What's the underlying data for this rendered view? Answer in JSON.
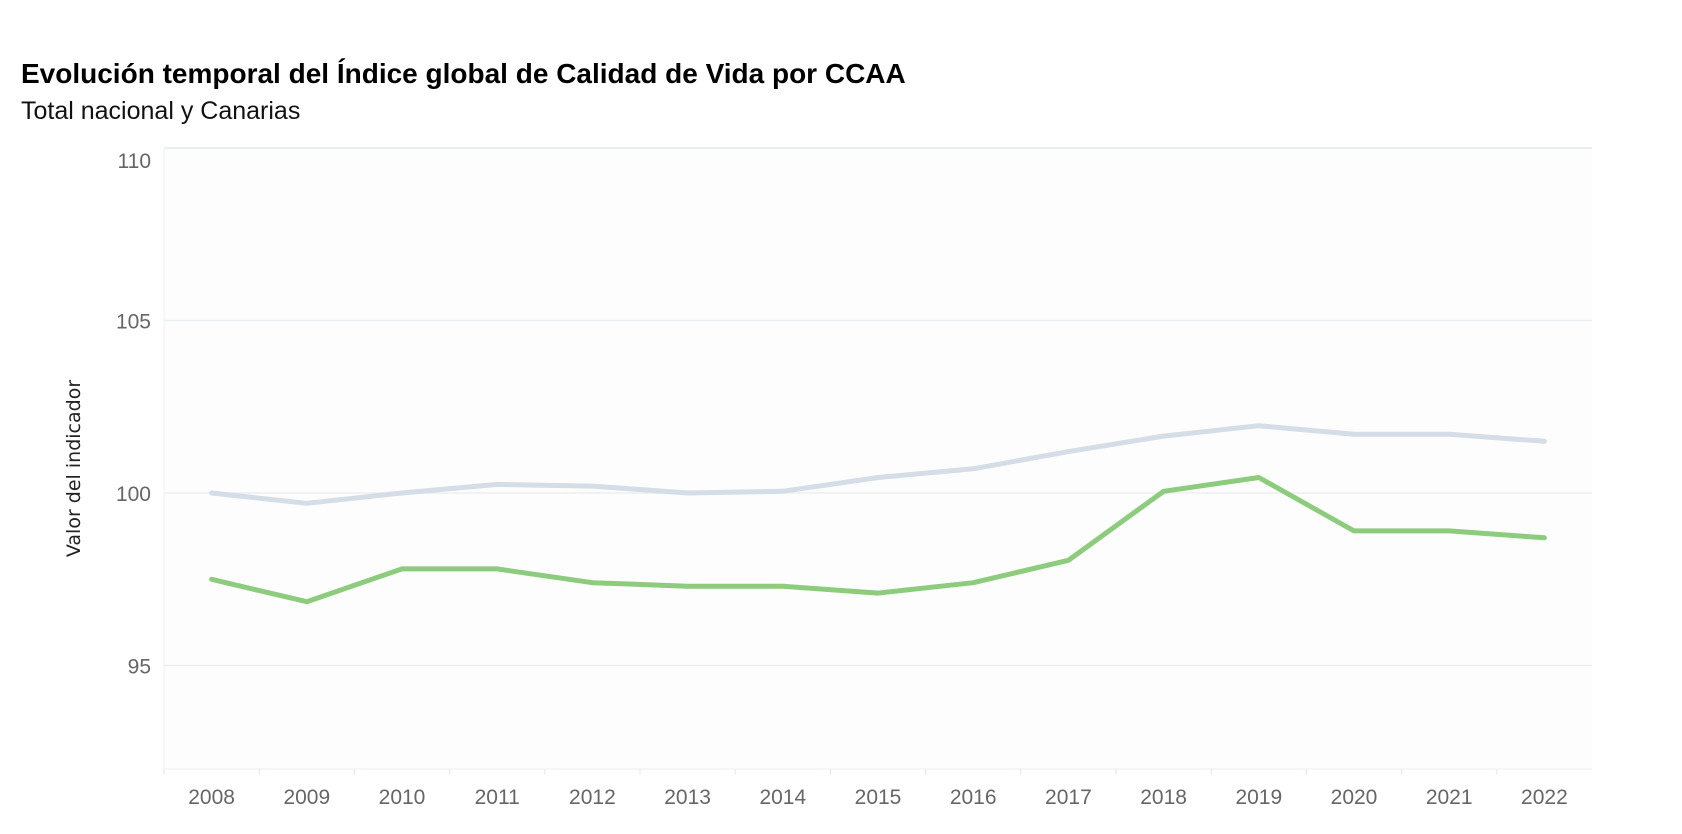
{
  "chart_data": {
    "type": "line",
    "title": "Evolución temporal del Índice global de Calidad de Vida por CCAA",
    "subtitle": "Total nacional y Canarias",
    "xlabel": "",
    "ylabel": "Valor del indicador",
    "x": [
      "2008",
      "2009",
      "2010",
      "2011",
      "2012",
      "2013",
      "2014",
      "2015",
      "2016",
      "2017",
      "2018",
      "2019",
      "2020",
      "2021",
      "2022"
    ],
    "ylim": [
      92,
      110
    ],
    "yticks": [
      95,
      100,
      105,
      110
    ],
    "grid": true,
    "legend": "none",
    "series": [
      {
        "color": "#d5dde6",
        "values": [
          100.0,
          99.7,
          100.0,
          100.25,
          100.2,
          100.0,
          100.05,
          100.45,
          100.7,
          101.2,
          101.65,
          101.95,
          101.7,
          101.7,
          101.5
        ]
      },
      {
        "color": "#8ccc7c",
        "values": [
          97.5,
          96.85,
          97.8,
          97.8,
          97.4,
          97.3,
          97.3,
          97.1,
          97.4,
          98.05,
          100.05,
          100.45,
          98.9,
          98.9,
          98.7
        ]
      }
    ]
  }
}
